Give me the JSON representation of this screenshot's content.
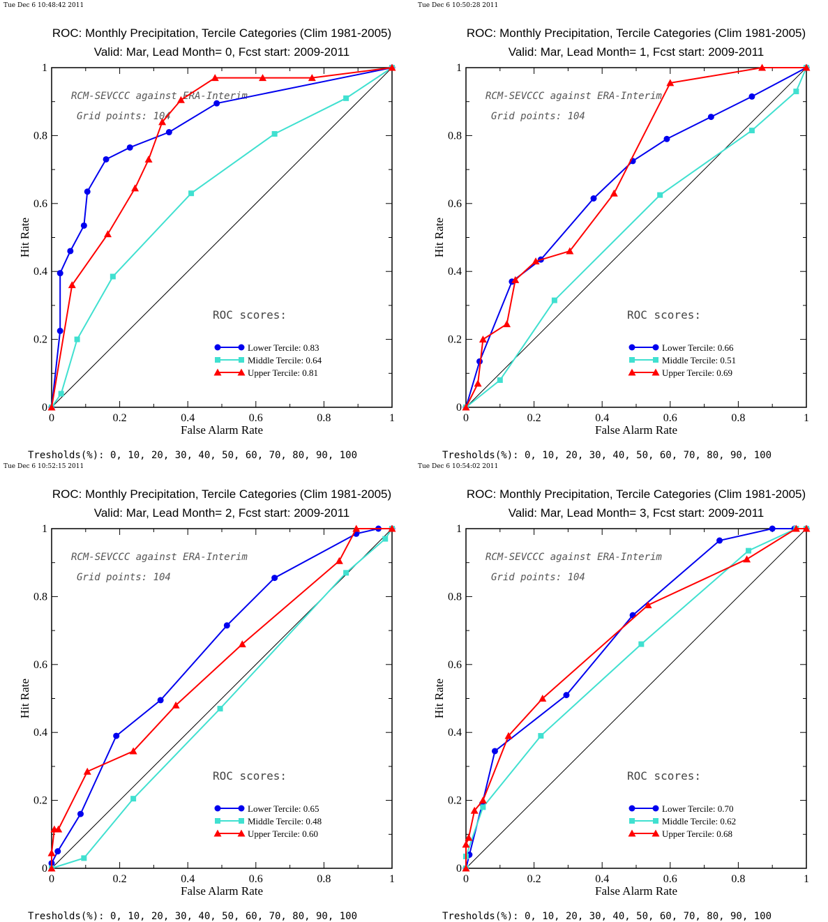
{
  "x_ticks": [
    "0",
    "0.2",
    "0.4",
    "0.6",
    "0.8",
    "1"
  ],
  "y_ticks": [
    "0",
    "0.2",
    "0.4",
    "0.6",
    "0.8",
    "1"
  ],
  "colors": {
    "lower": "#0000ee",
    "middle": "#40e0d0",
    "upper": "#ff0000",
    "diag": "#000000"
  },
  "chart_data": [
    {
      "type": "line",
      "timestamp": "Tue Dec  6 10:48:42 2011",
      "title": "ROC: Monthly Precipitation, Tercile Categories (Clim 1981-2005)",
      "subtitle": "Valid: Mar, Lead Month= 0, Fcst start: 2009-2011",
      "xlabel": "False Alarm Rate",
      "ylabel": "Hit Rate",
      "xlim": [
        0,
        1
      ],
      "ylim": [
        0,
        1
      ],
      "note1": "RCM-SEVCCC against ERA-Interim",
      "note2": "Grid points:  104",
      "scores_title": "ROC scores:",
      "thresholds": "Tresholds(%): 0, 10, 20, 30, 40, 50, 60, 70, 80, 90, 100",
      "series": [
        {
          "key": "lower",
          "label": "Lower Tercile: 0.83",
          "x": [
            0,
            0.025,
            0.025,
            0.055,
            0.095,
            0.105,
            0.16,
            0.23,
            0.345,
            0.485,
            1
          ],
          "y": [
            0,
            0.225,
            0.395,
            0.46,
            0.535,
            0.635,
            0.73,
            0.765,
            0.81,
            0.895,
            1
          ]
        },
        {
          "key": "middle",
          "label": "Middle Tercile: 0.64",
          "x": [
            0,
            0.028,
            0.075,
            0.18,
            0.41,
            0.655,
            0.865,
            1
          ],
          "y": [
            0,
            0.04,
            0.2,
            0.385,
            0.63,
            0.805,
            0.91,
            1
          ]
        },
        {
          "key": "upper",
          "label": "Upper Tercile: 0.81",
          "x": [
            0,
            0.06,
            0.165,
            0.245,
            0.285,
            0.325,
            0.38,
            0.48,
            0.62,
            0.765,
            1
          ],
          "y": [
            0,
            0.36,
            0.51,
            0.645,
            0.73,
            0.84,
            0.905,
            0.97,
            0.97,
            0.97,
            1
          ]
        }
      ]
    },
    {
      "type": "line",
      "timestamp": "Tue Dec  6 10:50:28 2011",
      "title": "ROC: Monthly Precipitation, Tercile Categories (Clim 1981-2005)",
      "subtitle": "Valid: Mar, Lead Month= 1, Fcst start: 2009-2011",
      "xlabel": "False Alarm Rate",
      "ylabel": "Hit Rate",
      "xlim": [
        0,
        1
      ],
      "ylim": [
        0,
        1
      ],
      "note1": "RCM-SEVCCC against ERA-Interim",
      "note2": "Grid points:  104",
      "scores_title": "ROC scores:",
      "thresholds": "Tresholds(%): 0, 10, 20, 30, 40, 50, 60, 70, 80, 90, 100",
      "series": [
        {
          "key": "lower",
          "label": "Lower Tercile: 0.66",
          "x": [
            0,
            0.04,
            0.135,
            0.22,
            0.375,
            0.49,
            0.59,
            0.72,
            0.84,
            1
          ],
          "y": [
            0,
            0.135,
            0.37,
            0.435,
            0.615,
            0.725,
            0.79,
            0.855,
            0.915,
            1
          ]
        },
        {
          "key": "middle",
          "label": "Middle Tercile: 0.51",
          "x": [
            0,
            0.1,
            0.26,
            0.57,
            0.84,
            0.97,
            1
          ],
          "y": [
            0,
            0.08,
            0.315,
            0.625,
            0.815,
            0.93,
            1
          ]
        },
        {
          "key": "upper",
          "label": "Upper Tercile: 0.69",
          "x": [
            0,
            0.035,
            0.05,
            0.12,
            0.145,
            0.205,
            0.305,
            0.435,
            0.6,
            0.87,
            1
          ],
          "y": [
            0,
            0.07,
            0.2,
            0.245,
            0.375,
            0.43,
            0.46,
            0.63,
            0.955,
            1,
            1
          ]
        }
      ]
    },
    {
      "type": "line",
      "timestamp": "Tue Dec  6 10:52:15 2011",
      "title": "ROC: Monthly Precipitation, Tercile Categories (Clim 1981-2005)",
      "subtitle": "Valid: Mar, Lead Month= 2, Fcst start: 2009-2011",
      "xlabel": "False Alarm Rate",
      "ylabel": "Hit Rate",
      "xlim": [
        0,
        1
      ],
      "ylim": [
        0,
        1
      ],
      "note1": "RCM-SEVCCC against ERA-Interim",
      "note2": "Grid points:  104",
      "scores_title": "ROC scores:",
      "thresholds": "Tresholds(%): 0, 10, 20, 30, 40, 50, 60, 70, 80, 90, 100",
      "series": [
        {
          "key": "lower",
          "label": "Lower Tercile: 0.65",
          "x": [
            0,
            0.018,
            0.085,
            0.19,
            0.32,
            0.515,
            0.655,
            0.895,
            0.96,
            1
          ],
          "y": [
            0.015,
            0.05,
            0.16,
            0.39,
            0.495,
            0.715,
            0.855,
            0.985,
            1,
            1
          ]
        },
        {
          "key": "middle",
          "label": "Middle Tercile: 0.48",
          "x": [
            0,
            0.095,
            0.24,
            0.495,
            0.865,
            0.98,
            1
          ],
          "y": [
            0,
            0.03,
            0.205,
            0.47,
            0.87,
            0.97,
            1
          ]
        },
        {
          "key": "upper",
          "label": "Upper Tercile: 0.60",
          "x": [
            0,
            0,
            0.008,
            0.02,
            0.105,
            0.24,
            0.365,
            0.56,
            0.845,
            0.895,
            1
          ],
          "y": [
            0,
            0.045,
            0.115,
            0.115,
            0.285,
            0.345,
            0.48,
            0.66,
            0.905,
            1,
            1
          ]
        }
      ]
    },
    {
      "type": "line",
      "timestamp": "Tue Dec  6 10:54:02 2011",
      "title": "ROC: Monthly Precipitation, Tercile Categories (Clim 1981-2005)",
      "subtitle": "Valid: Mar, Lead Month= 3, Fcst start: 2009-2011",
      "xlabel": "False Alarm Rate",
      "ylabel": "Hit Rate",
      "xlim": [
        0,
        1
      ],
      "ylim": [
        0,
        1
      ],
      "note1": "RCM-SEVCCC against ERA-Interim",
      "note2": "Grid points:  104",
      "scores_title": "ROC scores:",
      "thresholds": "Tresholds(%): 0, 10, 20, 30, 40, 50, 60, 70, 80, 90, 100",
      "series": [
        {
          "key": "lower",
          "label": "Lower Tercile: 0.70",
          "x": [
            0,
            0.01,
            0.048,
            0.085,
            0.295,
            0.49,
            0.745,
            0.9,
            0.965,
            1
          ],
          "y": [
            0,
            0.04,
            0.19,
            0.345,
            0.51,
            0.745,
            0.965,
            1,
            1,
            1
          ]
        },
        {
          "key": "middle",
          "label": "Middle Tercile: 0.62",
          "x": [
            0,
            0,
            0.05,
            0.22,
            0.515,
            0.83,
            0.97,
            1
          ],
          "y": [
            0,
            0.035,
            0.18,
            0.39,
            0.66,
            0.935,
            1,
            1
          ]
        },
        {
          "key": "upper",
          "label": "Upper Tercile: 0.68",
          "x": [
            0,
            0,
            0.008,
            0.025,
            0.05,
            0.125,
            0.225,
            0.535,
            0.825,
            0.97,
            1
          ],
          "y": [
            0,
            0.07,
            0.09,
            0.17,
            0.2,
            0.39,
            0.5,
            0.775,
            0.91,
            1,
            1
          ]
        }
      ]
    }
  ]
}
